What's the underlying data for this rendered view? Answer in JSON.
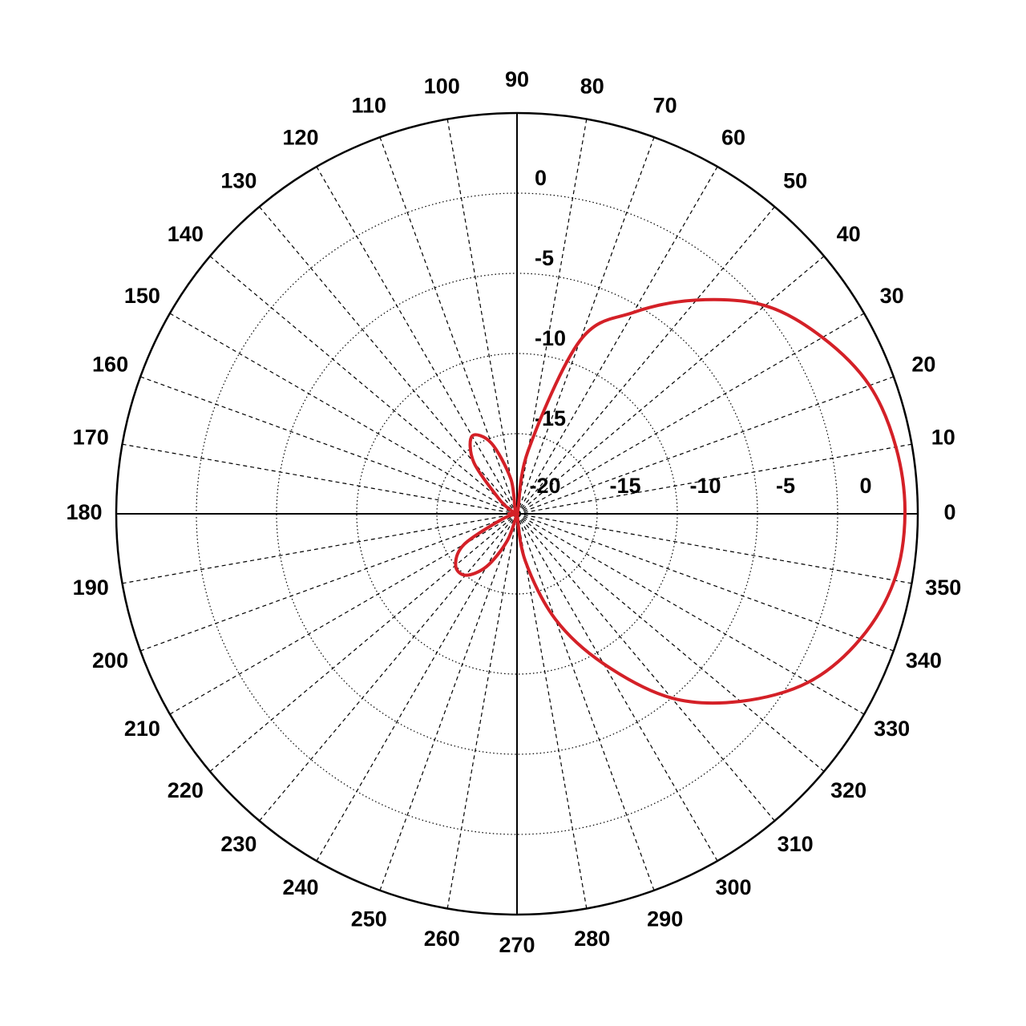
{
  "chart_data": {
    "type": "polar",
    "theta": [
      0,
      10,
      20,
      30,
      40,
      50,
      60,
      70,
      80,
      90,
      100,
      110,
      120,
      130,
      140,
      150,
      160,
      170,
      180,
      190,
      200,
      210,
      220,
      230,
      240,
      250,
      260,
      270,
      280,
      290,
      300,
      310,
      320,
      330,
      340,
      350
    ],
    "values": [
      4.2,
      4.0,
      3.4,
      2.0,
      0.2,
      -2.6,
      -5.5,
      -8.5,
      -16,
      -20,
      -17.8,
      -15.3,
      -14.4,
      -15.8,
      -18.5,
      -19.5,
      -20,
      -20,
      -19.5,
      -20,
      -19,
      -16.2,
      -15,
      -15,
      -16.2,
      -18.2,
      -20,
      -20,
      -17,
      -13,
      -9.2,
      -5,
      -1.8,
      1.0,
      2.8,
      3.9
    ],
    "color": "#d42027",
    "rlim": [
      -20,
      5
    ],
    "rticks": [
      -20,
      -15,
      -10,
      -5,
      0
    ],
    "thetaticks": [
      0,
      10,
      20,
      30,
      40,
      50,
      60,
      70,
      80,
      90,
      100,
      110,
      120,
      130,
      140,
      150,
      160,
      170,
      180,
      190,
      200,
      210,
      220,
      230,
      240,
      250,
      260,
      270,
      280,
      290,
      300,
      310,
      320,
      330,
      340,
      350
    ],
    "grid": true
  }
}
